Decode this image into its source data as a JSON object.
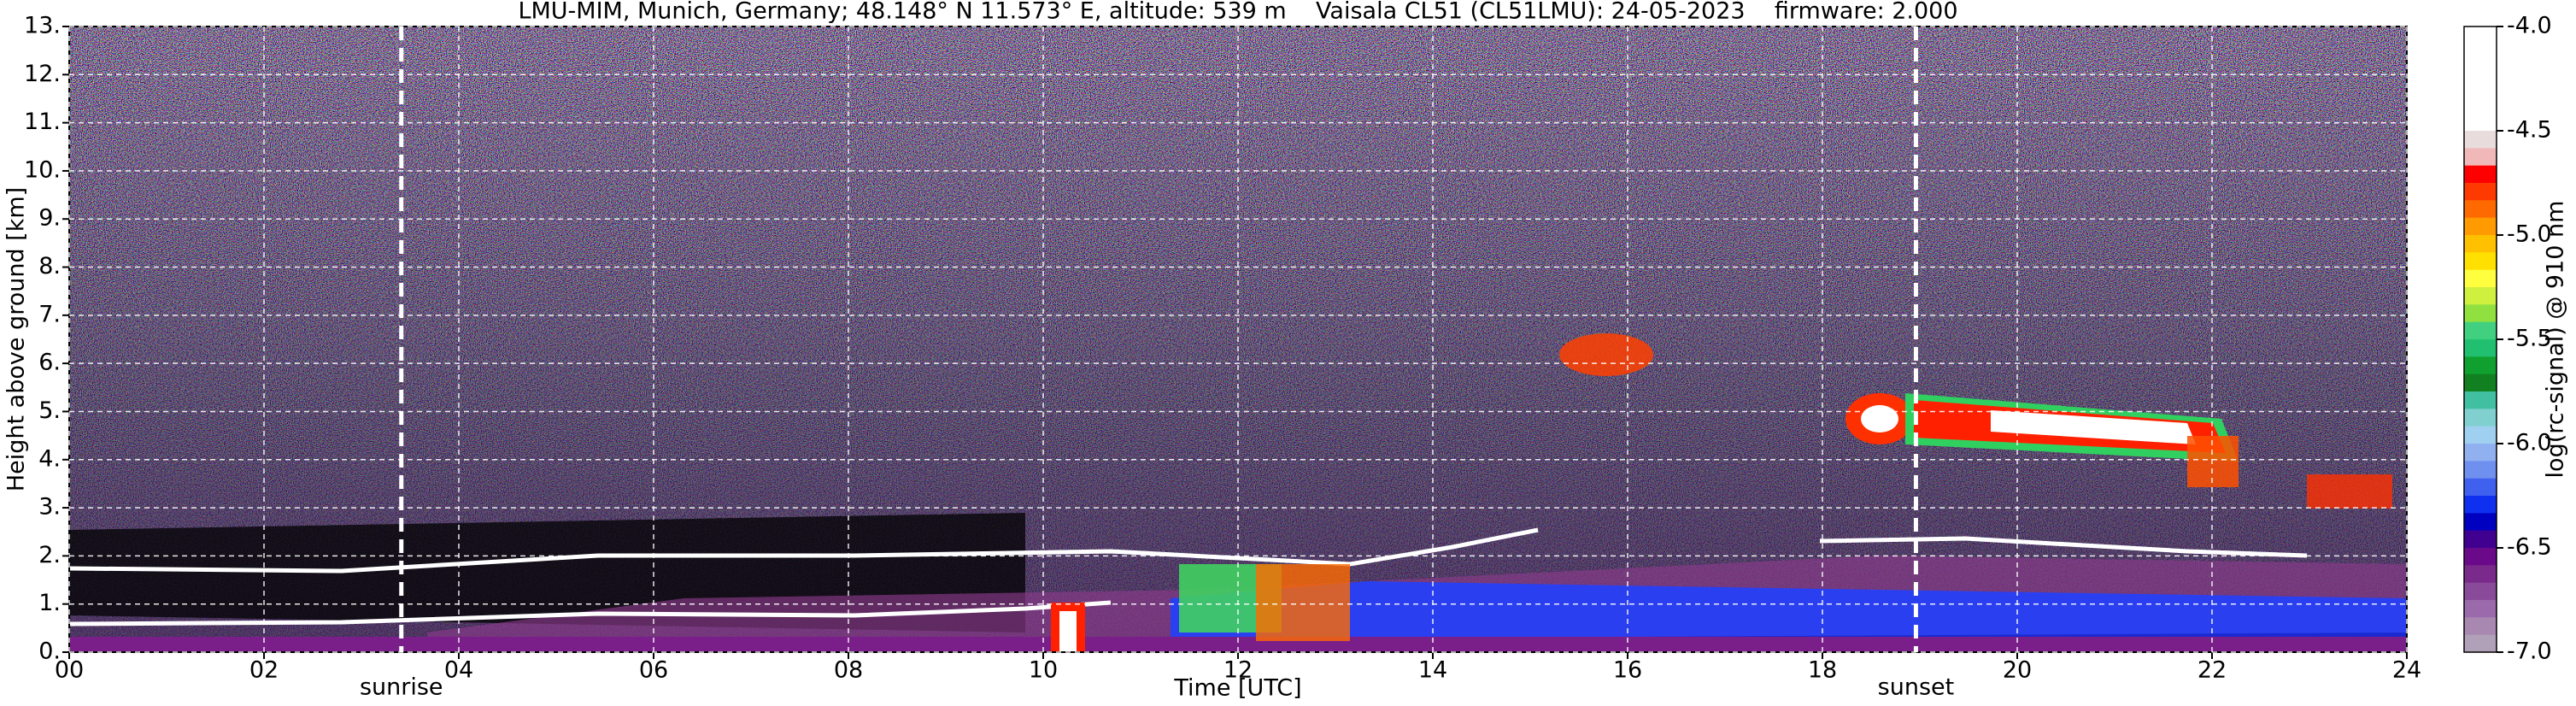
{
  "chart_data": {
    "type": "heatmap",
    "title": "LMU-MIM, Munich, Germany; 48.148° N 11.573° E, altitude: 539 m    Vaisala CL51 (CL51LMU): 24-05-2023    firmware: 2.000",
    "x_label": "Time [UTC]",
    "y_label": "Height above ground [km]",
    "xlim": [
      0,
      24
    ],
    "xticks": [
      {
        "value": 0,
        "label": "00"
      },
      {
        "value": 2,
        "label": "02"
      },
      {
        "value": 4,
        "label": "04"
      },
      {
        "value": 6,
        "label": "06"
      },
      {
        "value": 8,
        "label": "08"
      },
      10,
      12,
      14,
      16,
      18,
      20,
      22,
      24
    ],
    "ylim": [
      0,
      13
    ],
    "yticks": [
      {
        "value": 0,
        "label": "0."
      },
      {
        "value": 1,
        "label": "1."
      },
      {
        "value": 2,
        "label": "2."
      },
      {
        "value": 3,
        "label": "3."
      },
      {
        "value": 4,
        "label": "4."
      },
      {
        "value": 5,
        "label": "5."
      },
      {
        "value": 6,
        "label": "6."
      },
      {
        "value": 7,
        "label": "7."
      },
      {
        "value": 8,
        "label": "8."
      },
      {
        "value": 9,
        "label": "9."
      },
      {
        "value": 10,
        "label": "10."
      },
      {
        "value": 11,
        "label": "11."
      },
      {
        "value": 12,
        "label": "12."
      },
      {
        "value": 13,
        "label": "13."
      }
    ],
    "grid": true,
    "annotations": [
      {
        "label": "sunrise",
        "x": 3.41
      },
      {
        "label": "sunset",
        "x": 18.96
      }
    ],
    "colorbar": {
      "label": "log(rc-signal) @ 910 nm",
      "clim": [
        -7,
        -4
      ],
      "ticks": [
        {
          "value": -4,
          "label": "-4.0"
        },
        -4.5,
        {
          "value": -5,
          "label": "-5.0"
        },
        -5.5,
        {
          "value": -6,
          "label": "-6.0"
        },
        -6.5,
        {
          "value": -7,
          "label": "-7.0"
        }
      ],
      "colors": [
        "#ffffff",
        "#ffffff",
        "#ffffff",
        "#ffffff",
        "#ffffff",
        "#ffffff",
        "#e8dcdc",
        "#f0b8b8",
        "#ff0000",
        "#ff3a00",
        "#ff6a00",
        "#ff9a00",
        "#ffc000",
        "#ffe000",
        "#ffff40",
        "#d0f040",
        "#90e040",
        "#40d080",
        "#20c070",
        "#10a030",
        "#108020",
        "#40c0a0",
        "#80d0d0",
        "#a0d0f0",
        "#90b0f0",
        "#7090f0",
        "#4060f0",
        "#1030f0",
        "#0000c0",
        "#400090",
        "#6a0a8a",
        "#7a2a8a",
        "#8a4a9a",
        "#9a6aaa",
        "#a888b0",
        "#b0a0b8"
      ]
    }
  }
}
